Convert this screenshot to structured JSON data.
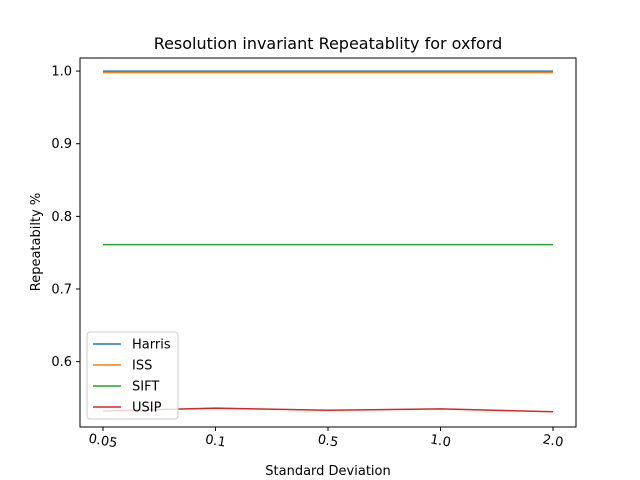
{
  "chart_data": {
    "type": "line",
    "title": "Resolution invariant Repeatablity for oxford",
    "xlabel": "Standard Deviation",
    "ylabel": "Repeatabilty %",
    "categories": [
      "0.05",
      "0.1",
      "0.5",
      "1.0",
      "2.0"
    ],
    "yticks": [
      "0.6",
      "0.7",
      "0.8",
      "0.9",
      "1.0"
    ],
    "ylim": [
      0.51,
      1.018
    ],
    "grid": false,
    "legend_position": "lower-left",
    "series": [
      {
        "name": "Harris",
        "color": "#1f77b4",
        "values": [
          1.0,
          1.0,
          1.0,
          1.0,
          1.0
        ]
      },
      {
        "name": "ISS",
        "color": "#ff7f0e",
        "values": [
          0.998,
          0.998,
          0.998,
          0.998,
          0.998
        ]
      },
      {
        "name": "SIFT",
        "color": "#2ca02c",
        "values": [
          0.761,
          0.761,
          0.761,
          0.761,
          0.761
        ]
      },
      {
        "name": "USIP",
        "color": "#d62728",
        "values": [
          0.532,
          0.536,
          0.533,
          0.535,
          0.531
        ]
      }
    ]
  }
}
